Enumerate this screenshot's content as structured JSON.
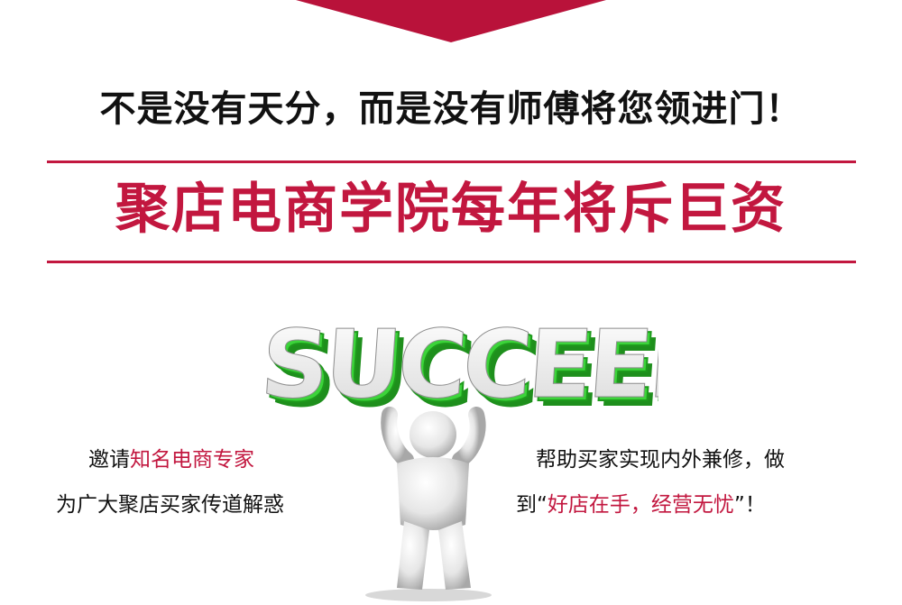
{
  "colors": {
    "accent": "#c2173f",
    "banner": "#b9123a",
    "green": "#2fbf2c",
    "text": "#111111"
  },
  "headline": "不是没有天分，而是没有师傅将您领进门！",
  "subheadline": "聚店电商学院每年将斥巨资",
  "illustration": {
    "word": "SUCCEED",
    "icon": "figure-holding-succeed-icon"
  },
  "left_text": {
    "line1_prefix": "邀请",
    "line1_highlight": "知名电商专家",
    "line2": "为广大聚店买家传道解惑"
  },
  "right_text": {
    "line1": "帮助买家实现内外兼修，做",
    "line2_prefix": "到“",
    "line2_highlight": "好店在手，经营无忧",
    "line2_suffix": "”！"
  }
}
